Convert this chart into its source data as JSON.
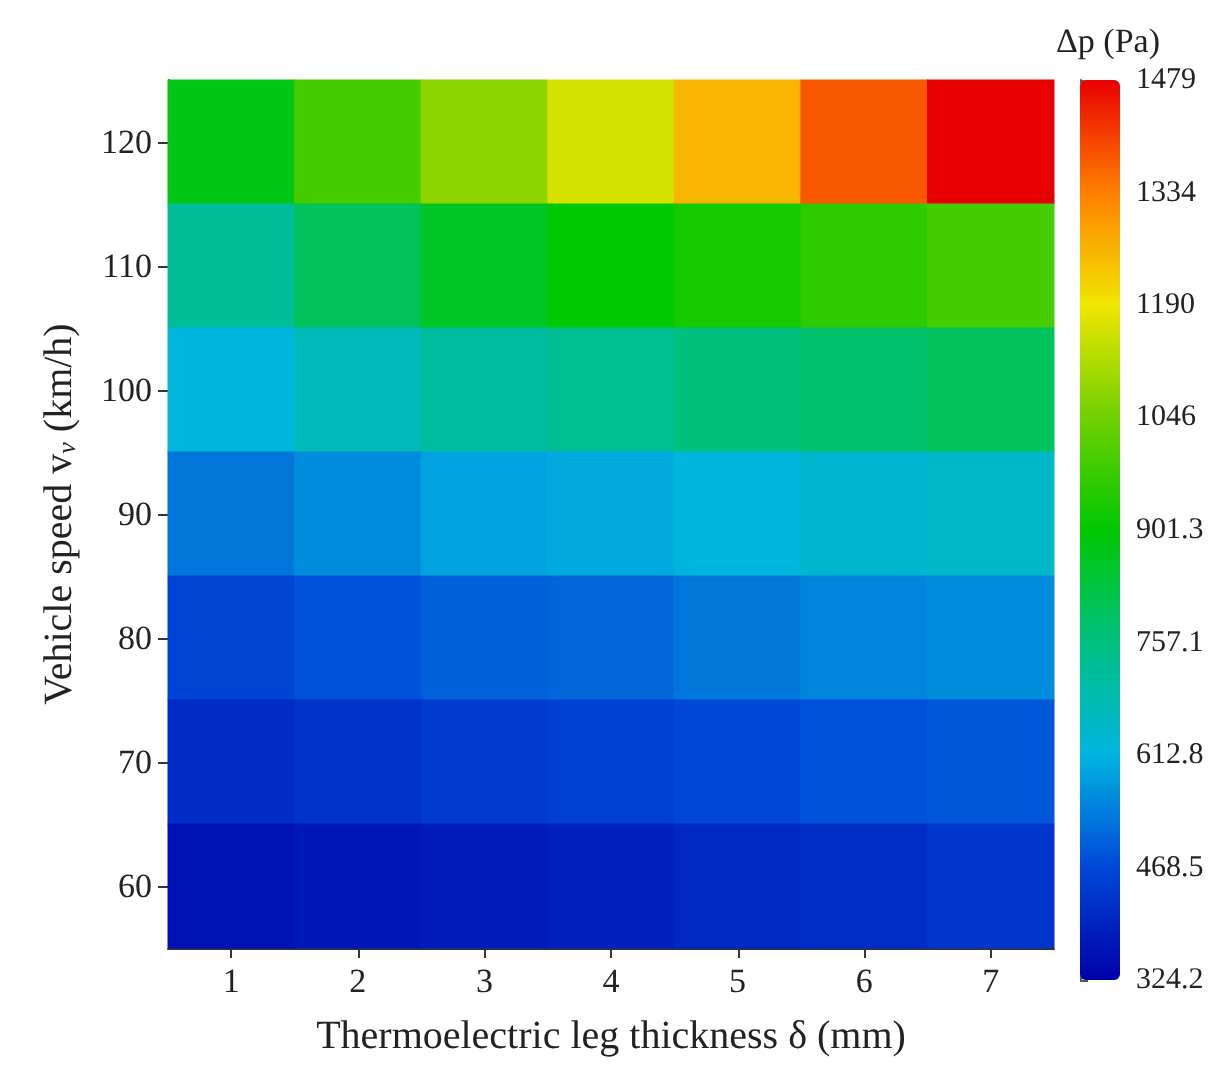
{
  "chart_data": {
    "type": "heatmap",
    "xlabel": "Thermoelectric leg thickness δ (mm)",
    "ylabel": "Vehicle speed v$_{v}$ (km/h)",
    "clabel": "Δp (Pa)",
    "categories": [
      "1",
      "2",
      "3",
      "4",
      "5",
      "6",
      "7"
    ],
    "y_categories": [
      "120",
      "110",
      "100",
      "90",
      "80",
      "70",
      "60"
    ],
    "cells": [
      [
        880,
        990,
        1080,
        1160,
        1260,
        1380,
        1479
      ],
      [
        720,
        800,
        860,
        900,
        930,
        960,
        990
      ],
      [
        620,
        670,
        710,
        730,
        760,
        780,
        800
      ],
      [
        530,
        560,
        590,
        600,
        620,
        640,
        650
      ],
      [
        460,
        480,
        500,
        510,
        530,
        550,
        560
      ],
      [
        410,
        425,
        440,
        450,
        465,
        480,
        490
      ],
      [
        360,
        370,
        380,
        390,
        405,
        415,
        430
      ]
    ],
    "clim": [
      324.2,
      1479
    ],
    "cticks": [
      324.2,
      468.5,
      612.8,
      757.1,
      901.3,
      1046,
      1190,
      1334,
      1479
    ]
  }
}
